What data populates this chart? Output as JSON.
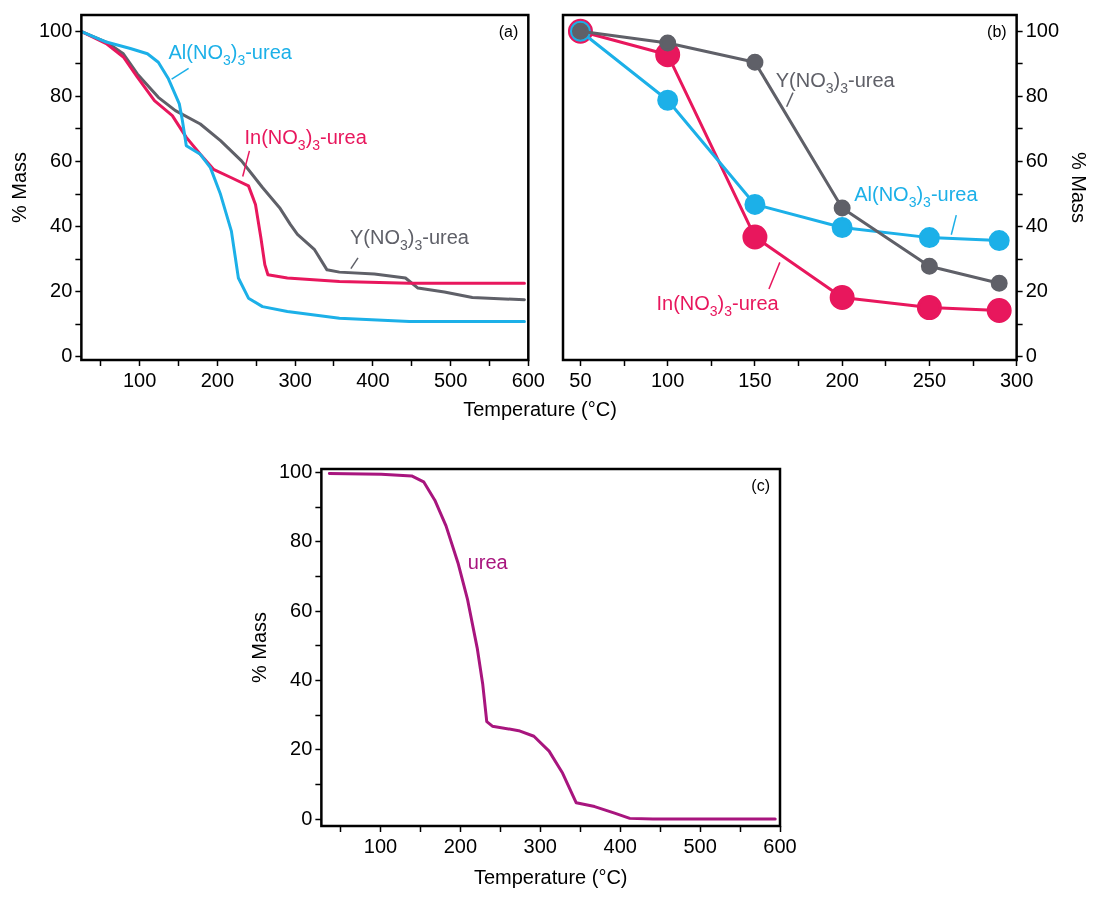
{
  "chart_data": [
    {
      "type": "line",
      "xlabel": "Temperature (°C)",
      "ylabel": "% Mass",
      "annotations": [
        "(a)"
      ],
      "marker": "none",
      "line_style": "solid",
      "xlim": [
        25,
        600
      ],
      "xticks": [
        {
          "value": 50,
          "label": null
        },
        100,
        {
          "value": 150,
          "label": null
        },
        200,
        {
          "value": 250,
          "label": null
        },
        300,
        {
          "value": 350,
          "label": null
        },
        400,
        {
          "value": 450,
          "label": null
        },
        500,
        {
          "value": 550,
          "label": null
        },
        600
      ],
      "ylim": [
        -1,
        105
      ],
      "yticks": [
        0,
        {
          "value": 10,
          "label": null
        },
        20,
        {
          "value": 30,
          "label": null
        },
        40,
        {
          "value": 50,
          "label": null
        },
        60,
        {
          "value": 70,
          "label": null
        },
        80,
        {
          "value": 90,
          "label": null
        },
        100
      ],
      "series": [
        {
          "name": "Al(NO$_{3}$)$_{3}$-urea",
          "color": "#1cb0e8",
          "x": [
            26,
            57,
            88,
            110,
            124,
            137,
            151,
            155,
            160,
            178,
            191,
            204,
            218,
            227,
            240,
            258,
            290,
            357,
            447,
            595
          ],
          "values": [
            99.8,
            96.7,
            94.7,
            93.1,
            90.5,
            85.4,
            77.7,
            72.5,
            64.8,
            62.2,
            58.1,
            49.9,
            38.6,
            24.2,
            18,
            15.4,
            13.9,
            11.8,
            10.8,
            10.8
          ]
        },
        {
          "name": "In(NO$_{3}$)$_{3}$-urea",
          "color": "#e8175d",
          "x": [
            26,
            57,
            79,
            97,
            119,
            142,
            160,
            178,
            195,
            218,
            240,
            249,
            256,
            261,
            265,
            290,
            357,
            447,
            595
          ],
          "values": [
            99.8,
            96.2,
            92.1,
            85.9,
            78.7,
            74.1,
            67.4,
            62.2,
            57.6,
            55,
            52.5,
            46.8,
            36.5,
            28.3,
            25.2,
            24.2,
            23.1,
            22.6,
            22.6
          ]
        },
        {
          "name": "Y(NO$_{3}$)$_{3}$-urea",
          "color": "#5f6068",
          "x": [
            26,
            57,
            79,
            97,
            124,
            146,
            178,
            204,
            231,
            258,
            280,
            294,
            303,
            325,
            341,
            357,
            402,
            442,
            458,
            492,
            528,
            595
          ],
          "values": [
            99.8,
            96.7,
            93.1,
            86.9,
            79.7,
            75.6,
            71.5,
            66.4,
            60.2,
            52,
            45.8,
            40.6,
            37.6,
            32.9,
            26.7,
            26,
            25.4,
            24.2,
            21.1,
            19.9,
            18.2,
            17.5
          ]
        }
      ]
    },
    {
      "type": "line",
      "y2label": "% Mass",
      "annotations": [
        "(b)"
      ],
      "marker": "circle",
      "line_style": "solid",
      "xlim": [
        40,
        300
      ],
      "xticks": [
        50,
        {
          "value": 75,
          "label": null
        },
        100,
        {
          "value": 125,
          "label": null
        },
        150,
        {
          "value": 175,
          "label": null
        },
        200,
        {
          "value": 225,
          "label": null
        },
        250,
        {
          "value": 275,
          "label": null
        },
        300
      ],
      "y2lim": [
        -1,
        105
      ],
      "y2ticks": [
        0,
        {
          "value": 10,
          "label": null
        },
        20,
        {
          "value": 30,
          "label": null
        },
        40,
        {
          "value": 50,
          "label": null
        },
        60,
        {
          "value": 70,
          "label": null
        },
        80,
        {
          "value": 90,
          "label": null
        },
        100
      ],
      "x": [
        50,
        100,
        150,
        200,
        250,
        290
      ],
      "series": [
        {
          "name": "Y(NO$_{3}$)$_{3}$-urea",
          "color": "#5f6068",
          "axis": "y2",
          "values": [
            100,
            96.4,
            90.5,
            45.7,
            27.8,
            22.6
          ]
        },
        {
          "name": "Al(NO$_{3}$)$_{3}$-urea",
          "color": "#1cb0e8",
          "axis": "y2",
          "values": [
            100,
            78.8,
            46.8,
            39.7,
            36.6,
            35.7
          ]
        },
        {
          "name": "In(NO$_{3}$)$_{3}$-urea",
          "color": "#e8175d",
          "axis": "y2",
          "values": [
            100,
            92.8,
            36.8,
            18.2,
            15.1,
            14.2
          ]
        }
      ]
    },
    {
      "type": "line",
      "xlabel": "Temperature (°C)",
      "ylabel": "% Mass",
      "annotations": [
        "(c)"
      ],
      "marker": "none",
      "line_style": "solid",
      "xlim": [
        26,
        600
      ],
      "xticks": [
        {
          "value": 50,
          "label": null
        },
        100,
        {
          "value": 150,
          "label": null
        },
        200,
        {
          "value": 250,
          "label": null
        },
        300,
        {
          "value": 350,
          "label": null
        },
        400,
        {
          "value": 450,
          "label": null
        },
        500,
        {
          "value": 550,
          "label": null
        },
        600
      ],
      "ylim": [
        -2,
        101
      ],
      "yticks": [
        0,
        {
          "value": 10,
          "label": null
        },
        20,
        {
          "value": 30,
          "label": null
        },
        40,
        {
          "value": 50,
          "label": null
        },
        60,
        {
          "value": 70,
          "label": null
        },
        80,
        {
          "value": 90,
          "label": null
        },
        100
      ],
      "series": [
        {
          "name": "urea",
          "color": "#a8157e",
          "x": [
            36,
            101,
            139,
            154,
            168,
            182,
            197,
            209,
            221,
            228,
            233,
            240,
            273,
            292,
            311,
            328,
            345,
            368,
            393,
            412,
            441,
            594
          ],
          "values": [
            99.7,
            99.5,
            99,
            97.3,
            92,
            84.6,
            73.9,
            63.3,
            49.4,
            38.8,
            28.1,
            26.8,
            25.5,
            23.9,
            19.6,
            13.2,
            4.7,
            3.6,
            1.7,
            0.2,
            0,
            0
          ]
        }
      ]
    }
  ]
}
